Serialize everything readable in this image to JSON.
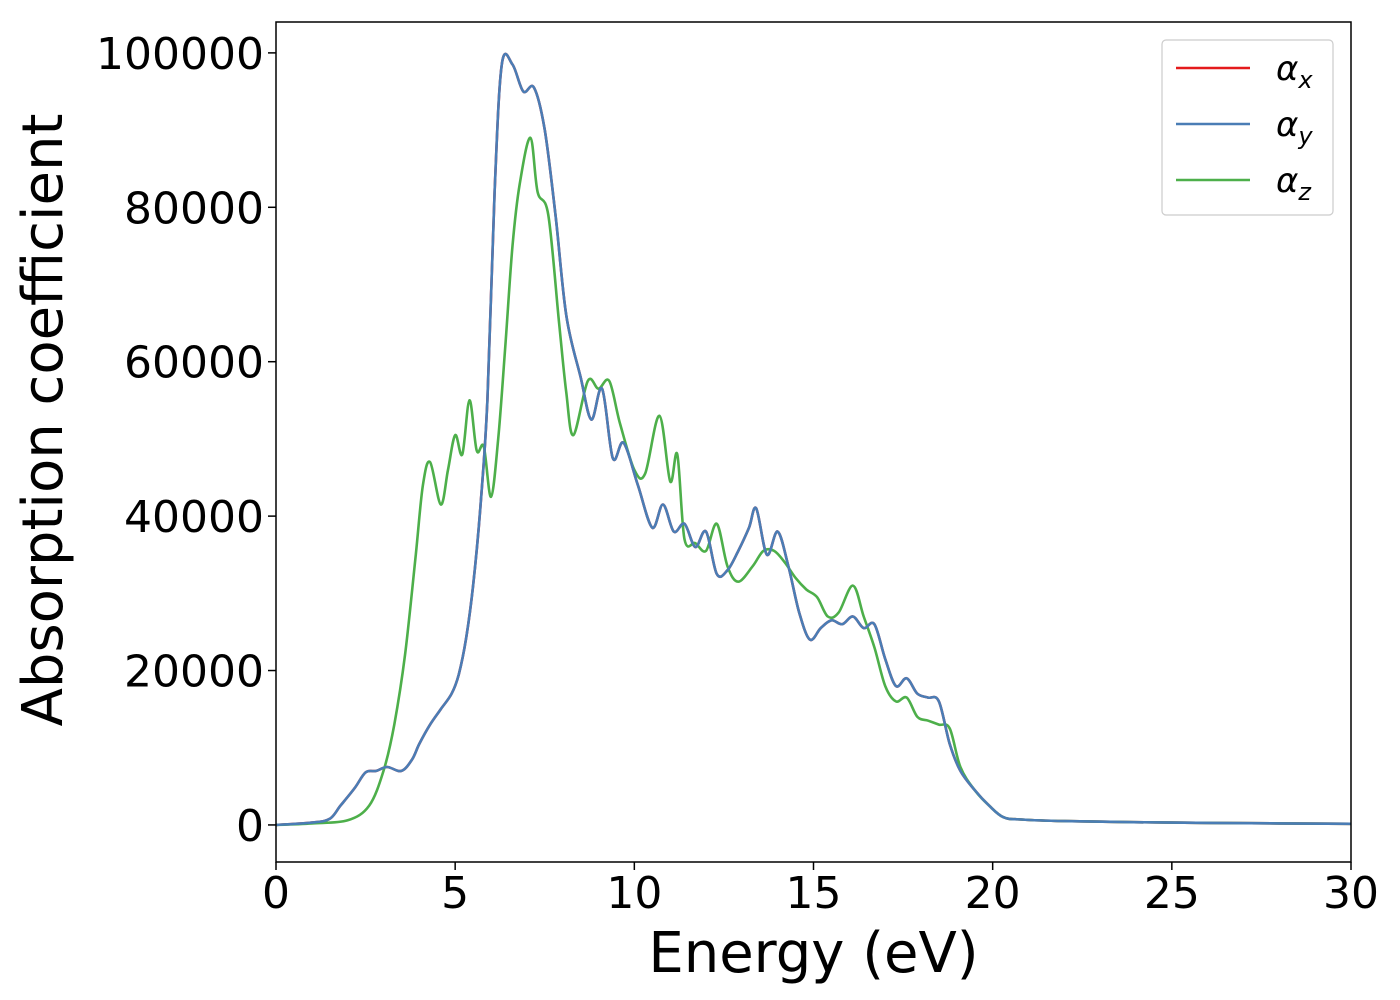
{
  "chart_data": {
    "type": "line",
    "xlabel": "Energy (eV)",
    "ylabel": "Absorption coefficient",
    "xlim": [
      0,
      30
    ],
    "ylim": [
      -4800,
      104000
    ],
    "xticks": [
      0,
      5,
      10,
      15,
      20,
      25,
      30
    ],
    "xtick_labels": [
      "0",
      "5",
      "10",
      "15",
      "20",
      "25",
      "30"
    ],
    "yticks": [
      0,
      20000,
      40000,
      60000,
      80000,
      100000
    ],
    "ytick_labels": [
      "0",
      "20000",
      "40000",
      "60000",
      "80000",
      "100000"
    ],
    "grid": false,
    "legend_position": "top-right",
    "series": [
      {
        "name": "αx",
        "legend_symbol": "α",
        "legend_sub": "x",
        "color": "#e41a1c",
        "x": [
          0,
          1,
          1.5,
          1.8,
          2.2,
          2.5,
          2.8,
          3.1,
          3.5,
          3.8,
          4.0,
          4.3,
          4.6,
          4.9,
          5.1,
          5.3,
          5.5,
          5.7,
          5.9,
          6.1,
          6.3,
          6.6,
          6.9,
          7.2,
          7.5,
          7.8,
          8.1,
          8.5,
          8.8,
          9.1,
          9.4,
          9.7,
          10.1,
          10.5,
          10.8,
          11.1,
          11.4,
          11.7,
          12.0,
          12.3,
          12.6,
          12.9,
          13.2,
          13.4,
          13.7,
          14.0,
          14.3,
          14.6,
          14.9,
          15.2,
          15.5,
          15.8,
          16.1,
          16.4,
          16.7,
          17.0,
          17.3,
          17.6,
          17.9,
          18.2,
          18.5,
          18.8,
          19.1,
          19.5,
          19.9,
          20.3,
          20.8,
          22,
          25,
          28,
          30
        ],
        "y": [
          0,
          300,
          800,
          2500,
          4800,
          6800,
          7000,
          7500,
          7000,
          8500,
          10500,
          13000,
          15000,
          17000,
          19500,
          24000,
          31000,
          41000,
          55000,
          82000,
          98500,
          98500,
          95000,
          95500,
          90000,
          79000,
          66000,
          58000,
          52500,
          56500,
          47500,
          49500,
          44000,
          38500,
          41500,
          38000,
          39000,
          36000,
          38000,
          32500,
          33000,
          35500,
          38500,
          41000,
          35000,
          38000,
          33500,
          27500,
          24000,
          25500,
          26500,
          26000,
          27000,
          25500,
          26000,
          21500,
          18000,
          19000,
          17000,
          16500,
          16000,
          10500,
          7000,
          4500,
          2500,
          1000,
          700,
          500,
          300,
          200,
          150
        ]
      },
      {
        "name": "αy",
        "legend_symbol": "α",
        "legend_sub": "y",
        "color": "#4a7db5",
        "x": [
          0,
          1,
          1.5,
          1.8,
          2.2,
          2.5,
          2.8,
          3.1,
          3.5,
          3.8,
          4.0,
          4.3,
          4.6,
          4.9,
          5.1,
          5.3,
          5.5,
          5.7,
          5.9,
          6.1,
          6.3,
          6.6,
          6.9,
          7.2,
          7.5,
          7.8,
          8.1,
          8.5,
          8.8,
          9.1,
          9.4,
          9.7,
          10.1,
          10.5,
          10.8,
          11.1,
          11.4,
          11.7,
          12.0,
          12.3,
          12.6,
          12.9,
          13.2,
          13.4,
          13.7,
          14.0,
          14.3,
          14.6,
          14.9,
          15.2,
          15.5,
          15.8,
          16.1,
          16.4,
          16.7,
          17.0,
          17.3,
          17.6,
          17.9,
          18.2,
          18.5,
          18.8,
          19.1,
          19.5,
          19.9,
          20.3,
          20.8,
          22,
          25,
          28,
          30
        ],
        "y": [
          0,
          300,
          800,
          2500,
          4800,
          6800,
          7000,
          7500,
          7000,
          8500,
          10500,
          13000,
          15000,
          17000,
          19500,
          24000,
          31000,
          41000,
          55000,
          82000,
          98500,
          98500,
          95000,
          95500,
          90000,
          79000,
          66000,
          58000,
          52500,
          56500,
          47500,
          49500,
          44000,
          38500,
          41500,
          38000,
          39000,
          36000,
          38000,
          32500,
          33000,
          35500,
          38500,
          41000,
          35000,
          38000,
          33500,
          27500,
          24000,
          25500,
          26500,
          26000,
          27000,
          25500,
          26000,
          21500,
          18000,
          19000,
          17000,
          16500,
          16000,
          10500,
          7000,
          4500,
          2500,
          1000,
          700,
          500,
          300,
          200,
          150
        ]
      },
      {
        "name": "αz",
        "legend_symbol": "α",
        "legend_sub": "z",
        "color": "#4daf4a",
        "x": [
          0,
          1,
          2,
          2.6,
          3.0,
          3.3,
          3.6,
          3.9,
          4.1,
          4.3,
          4.6,
          4.8,
          5.0,
          5.2,
          5.4,
          5.6,
          5.8,
          6.0,
          6.2,
          6.4,
          6.6,
          6.8,
          7.1,
          7.3,
          7.6,
          7.9,
          8.1,
          8.3,
          8.7,
          9.0,
          9.3,
          9.6,
          10.0,
          10.3,
          10.7,
          11.0,
          11.2,
          11.4,
          11.7,
          12.0,
          12.3,
          12.6,
          12.9,
          13.3,
          13.6,
          13.9,
          14.2,
          14.5,
          14.8,
          15.1,
          15.4,
          15.7,
          16.1,
          16.4,
          16.7,
          17.0,
          17.3,
          17.6,
          17.9,
          18.2,
          18.5,
          18.8,
          19.1,
          19.5,
          19.9,
          20.3,
          20.8,
          22,
          25,
          28,
          30
        ],
        "y": [
          0,
          200,
          600,
          2500,
          7000,
          13000,
          22000,
          35000,
          44000,
          47000,
          41500,
          46000,
          50500,
          48000,
          55000,
          48500,
          49000,
          42500,
          50000,
          62000,
          75000,
          83000,
          89000,
          82000,
          79000,
          65000,
          56000,
          50500,
          57500,
          56500,
          57500,
          52000,
          46000,
          45500,
          53000,
          44500,
          48000,
          37000,
          36500,
          35500,
          39000,
          33500,
          31500,
          33500,
          35500,
          35500,
          34000,
          32000,
          30500,
          29500,
          27000,
          27500,
          31000,
          27000,
          23000,
          18000,
          16000,
          16500,
          14000,
          13500,
          13000,
          12500,
          7500,
          4500,
          2500,
          1000,
          700,
          500,
          300,
          200,
          150
        ]
      }
    ]
  }
}
